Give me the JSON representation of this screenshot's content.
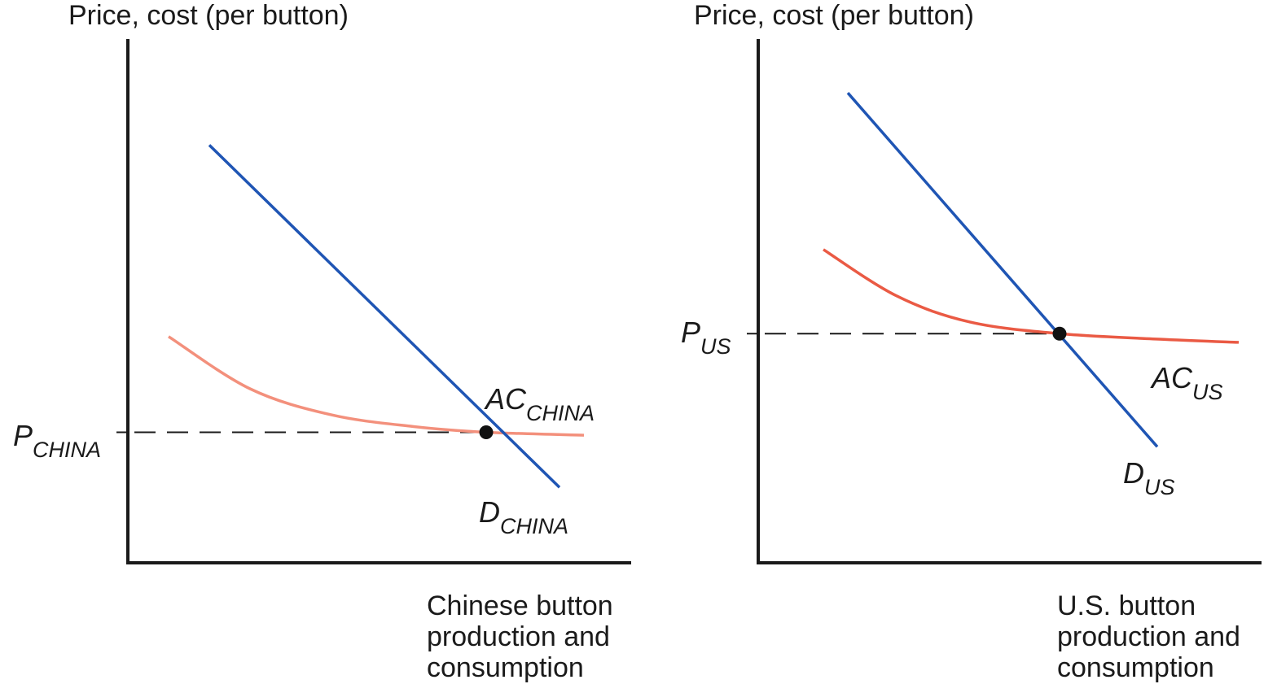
{
  "colors": {
    "demand": "#1f55b4",
    "ac_china": "#f3907c",
    "ac_us": "#ea5a44",
    "axis": "#1a1a1a",
    "point": "#111111"
  },
  "chart_data": [
    {
      "type": "line",
      "title": "",
      "ylabel": "Price, cost (per button)",
      "xlabel_lines": [
        "Chinese button",
        "production and",
        "consumption"
      ],
      "price_label": {
        "main": "P",
        "sub": "CHINA"
      },
      "demand": {
        "label": {
          "main": "D",
          "sub": "CHINA"
        },
        "points": [
          [
            1.0,
            7.2
          ],
          [
            5.3,
            1.3
          ]
        ]
      },
      "average_cost": {
        "label": {
          "main": "AC",
          "sub": "CHINA"
        },
        "points": [
          [
            0.5,
            3.9
          ],
          [
            1.5,
            3.0
          ],
          [
            2.5,
            2.55
          ],
          [
            3.5,
            2.35
          ],
          [
            4.4,
            2.25
          ],
          [
            5.6,
            2.2
          ]
        ]
      },
      "equilibrium": {
        "x": 4.4,
        "y": 2.25
      },
      "xlim": [
        0,
        7
      ],
      "ylim": [
        0,
        9
      ]
    },
    {
      "type": "line",
      "title": "",
      "ylabel": "Price, cost (per button)",
      "xlabel_lines": [
        "U.S. button",
        "production and",
        "consumption"
      ],
      "price_label": {
        "main": "P",
        "sub": "US"
      },
      "demand": {
        "label": {
          "main": "D",
          "sub": "US"
        },
        "points": [
          [
            1.1,
            8.1
          ],
          [
            4.9,
            2.0
          ]
        ]
      },
      "average_cost": {
        "label": {
          "main": "AC",
          "sub": "US"
        },
        "points": [
          [
            0.8,
            5.4
          ],
          [
            1.7,
            4.6
          ],
          [
            2.6,
            4.15
          ],
          [
            3.7,
            3.95
          ],
          [
            5.0,
            3.85
          ],
          [
            5.9,
            3.8
          ]
        ]
      },
      "equilibrium": {
        "x": 3.7,
        "y": 3.95
      },
      "xlim": [
        0,
        7
      ],
      "ylim": [
        0,
        9
      ]
    }
  ]
}
